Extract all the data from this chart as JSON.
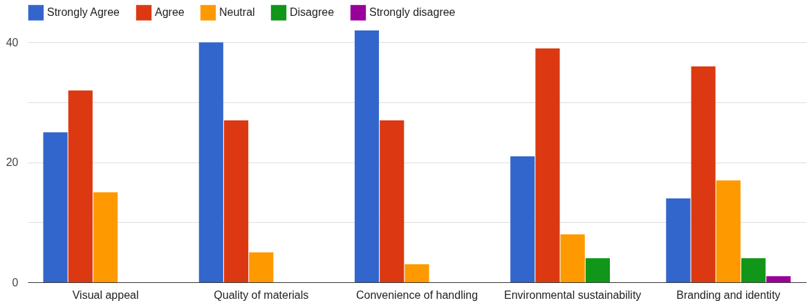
{
  "chart_data": {
    "type": "bar",
    "categories": [
      "Visual appeal",
      "Quality of materials",
      "Convenience of handling",
      "Environmental sustainability",
      "Branding and identity"
    ],
    "series": [
      {
        "name": "Strongly Agree",
        "color": "#3366cc",
        "values": [
          25,
          40,
          42,
          21,
          14
        ]
      },
      {
        "name": "Agree",
        "color": "#dc3912",
        "values": [
          32,
          27,
          27,
          39,
          36
        ]
      },
      {
        "name": "Neutral",
        "color": "#ff9900",
        "values": [
          15,
          5,
          3,
          8,
          17
        ]
      },
      {
        "name": "Disagree",
        "color": "#109618",
        "values": [
          0,
          0,
          0,
          4,
          4
        ]
      },
      {
        "name": "Strongly disagree",
        "color": "#990099",
        "values": [
          0,
          0,
          0,
          0,
          1
        ]
      }
    ],
    "ylim": [
      0,
      42
    ],
    "yticks": [
      0,
      {
        "value": 10,
        "label": null
      },
      20,
      {
        "value": 30,
        "label": null
      },
      40
    ],
    "grid": "y",
    "legend": "top left"
  }
}
